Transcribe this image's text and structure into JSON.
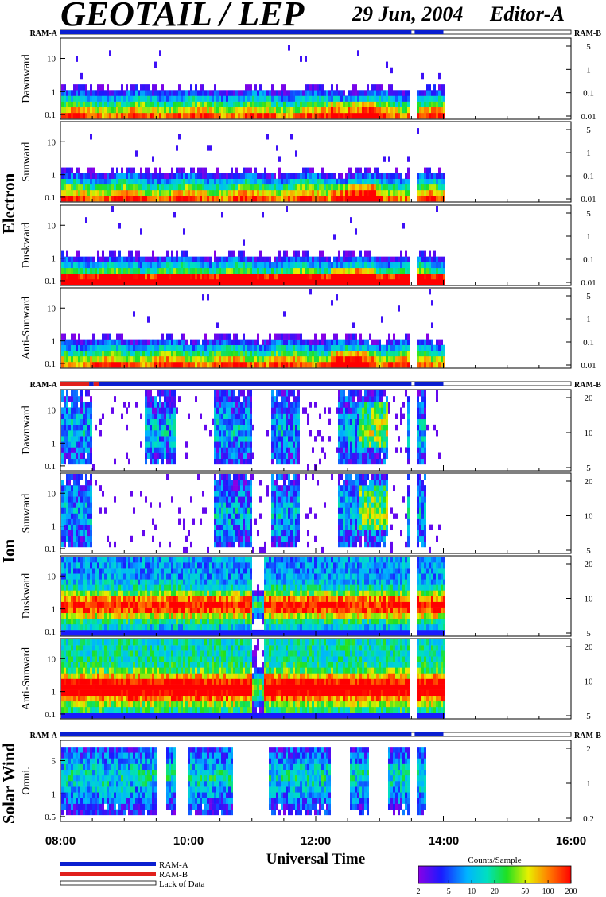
{
  "header": {
    "title": "GEOTAIL / LEP",
    "date": "29 Jun, 2004",
    "editor": "Editor-A"
  },
  "ram_labels": {
    "a": "RAM-A",
    "b": "RAM-B"
  },
  "groups": {
    "electron": "Electron",
    "ion": "Ion",
    "solar_wind": "Solar Wind"
  },
  "x_axis": {
    "label": "Universal Time",
    "ticks": [
      "08:00",
      "10:00",
      "12:00",
      "14:00",
      "16:00"
    ]
  },
  "legend": {
    "ram_a": "RAM-A",
    "ram_b": "RAM-B",
    "lack": "Lack of Data",
    "colorbar_title": "Counts/Sample",
    "colorbar_ticks": [
      "2",
      "5",
      "10",
      "20",
      "50",
      "100",
      "200"
    ]
  },
  "colors": {
    "ram_a": "#0a1fd0",
    "ram_b": "#e0201c"
  },
  "chart_data": [
    {
      "type": "heatmap",
      "group": "Electron",
      "panel": "Dawnward",
      "y_left_ticks": [
        "10",
        "1",
        "0.1"
      ],
      "y_right_ticks": [
        "5",
        "1",
        "0.1",
        "0.01"
      ],
      "x_range": [
        "08:00",
        "16:00"
      ],
      "data_end": "14:00",
      "gap_at": "13:30"
    },
    {
      "type": "heatmap",
      "group": "Electron",
      "panel": "Sunward",
      "y_left_ticks": [
        "10",
        "1",
        "0.1"
      ],
      "y_right_ticks": [
        "5",
        "1",
        "0.1",
        "0.01"
      ],
      "x_range": [
        "08:00",
        "16:00"
      ],
      "data_end": "14:00",
      "gap_at": "13:30"
    },
    {
      "type": "heatmap",
      "group": "Electron",
      "panel": "Duskward",
      "y_left_ticks": [
        "10",
        "1",
        "0.1"
      ],
      "y_right_ticks": [
        "5",
        "1",
        "0.1",
        "0.01"
      ],
      "x_range": [
        "08:00",
        "16:00"
      ],
      "data_end": "14:00",
      "gap_at": "13:30"
    },
    {
      "type": "heatmap",
      "group": "Electron",
      "panel": "Anti-Sunward",
      "y_left_ticks": [
        "10",
        "1",
        "0.1"
      ],
      "y_right_ticks": [
        "5",
        "1",
        "0.1",
        "0.01"
      ],
      "x_range": [
        "08:00",
        "16:00"
      ],
      "data_end": "14:00",
      "gap_at": "13:30"
    },
    {
      "type": "heatmap",
      "group": "Ion",
      "panel": "Dawnward",
      "y_left_ticks": [
        "10",
        "1",
        "0.1"
      ],
      "y_right_ticks": [
        "20",
        "10",
        "5"
      ],
      "x_range": [
        "08:00",
        "16:00"
      ],
      "data_end": "14:00",
      "gap_at": "13:30"
    },
    {
      "type": "heatmap",
      "group": "Ion",
      "panel": "Sunward",
      "y_left_ticks": [
        "10",
        "1",
        "0.1"
      ],
      "y_right_ticks": [
        "20",
        "10",
        "5"
      ],
      "x_range": [
        "08:00",
        "16:00"
      ],
      "data_end": "14:00",
      "gap_at": "13:30"
    },
    {
      "type": "heatmap",
      "group": "Ion",
      "panel": "Duskward",
      "y_left_ticks": [
        "10",
        "1",
        "0.1"
      ],
      "y_right_ticks": [
        "20",
        "10",
        "5"
      ],
      "x_range": [
        "08:00",
        "16:00"
      ],
      "data_end": "14:00",
      "gap_at": "13:30"
    },
    {
      "type": "heatmap",
      "group": "Ion",
      "panel": "Anti-Sunward",
      "y_left_ticks": [
        "10",
        "1",
        "0.1"
      ],
      "y_right_ticks": [
        "20",
        "10",
        "5"
      ],
      "x_range": [
        "08:00",
        "16:00"
      ],
      "data_end": "14:00",
      "gap_at": "13:30"
    },
    {
      "type": "heatmap",
      "group": "Solar Wind",
      "panel": "Omni.",
      "y_left_ticks": [
        "5",
        "1",
        "0.5"
      ],
      "y_right_ticks": [
        "2",
        "1",
        "0.2"
      ],
      "x_range": [
        "08:00",
        "16:00"
      ],
      "data_end": "14:00",
      "gap_at": "13:30"
    }
  ]
}
